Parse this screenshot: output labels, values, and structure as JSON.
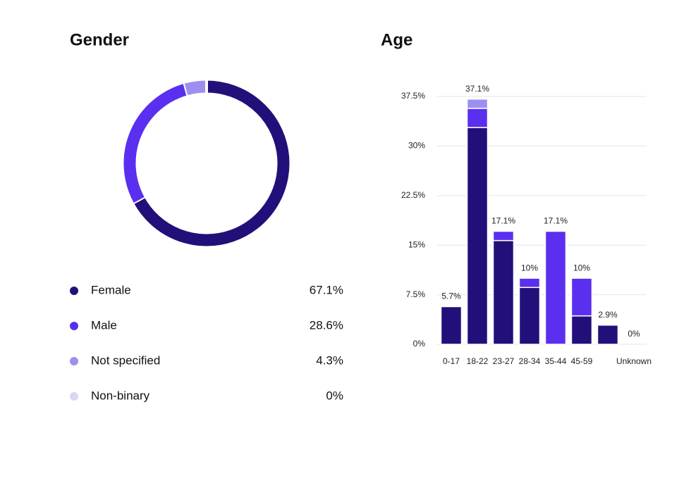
{
  "chart_data": [
    {
      "type": "pie",
      "title": "Gender",
      "categories": [
        "Female",
        "Male",
        "Not specified",
        "Non-binary"
      ],
      "values": [
        67.1,
        28.6,
        4.3,
        0
      ],
      "value_labels": [
        "67.1%",
        "28.6%",
        "4.3%",
        "0%"
      ],
      "colors": [
        "#230f7a",
        "#5a2ff0",
        "#9d8ff0",
        "#d9d7f8"
      ]
    },
    {
      "type": "bar",
      "title": "Age",
      "categories": [
        "0-17",
        "18-22",
        "23-27",
        "28-34",
        "35-44",
        "45-59",
        null,
        "Unknown"
      ],
      "series": [
        {
          "color": "#230f7a",
          "values": [
            5.7,
            32.8,
            15.7,
            8.6,
            0,
            4.3,
            2.9,
            0
          ]
        },
        {
          "color": "#5a2ff0",
          "values": [
            0,
            2.9,
            1.4,
            1.4,
            17.1,
            5.7,
            0,
            0
          ]
        },
        {
          "color": "#9d8ff0",
          "values": [
            0,
            1.4,
            0,
            0,
            0,
            0,
            0,
            0
          ]
        }
      ],
      "total_labels": [
        "5.7%",
        "37.1%",
        "17.1%",
        "10%",
        "17.1%",
        "10%",
        "2.9%",
        "0%"
      ],
      "ylim": [
        0,
        37.5
      ],
      "yticks": [
        {
          "value": 0,
          "label": "0%"
        },
        {
          "value": 7.5,
          "label": "7.5%"
        },
        {
          "value": 15,
          "label": "15%"
        },
        {
          "value": 22.5,
          "label": "22.5%"
        },
        {
          "value": 30,
          "label": "30%"
        },
        {
          "value": 37.5,
          "label": "37.5%"
        }
      ],
      "grid": true
    }
  ]
}
